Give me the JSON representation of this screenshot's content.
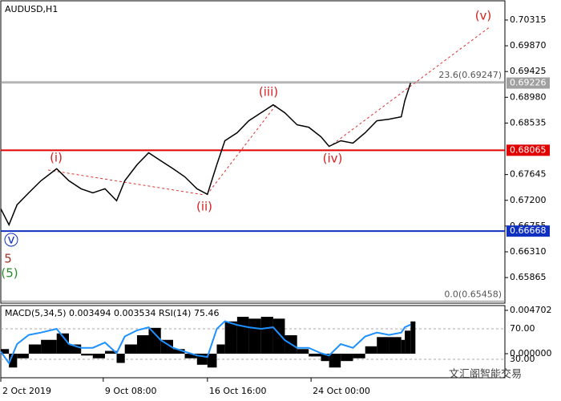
{
  "chart_data": [
    {
      "type": "line",
      "title": "AUDUSD,H1",
      "x": [
        0,
        14,
        28,
        48,
        69,
        96,
        117,
        138,
        158,
        179,
        199,
        213,
        234,
        254,
        275,
        296,
        316,
        337,
        355,
        371,
        385,
        406,
        426,
        447,
        468,
        488,
        509,
        529,
        550,
        564,
        584,
        605,
        626,
        646,
        667,
        688,
        694,
        704
      ],
      "series": [
        {
          "color": "#000000",
          "values": [
            0.67054,
            0.66777,
            0.67123,
            0.6733,
            0.67538,
            0.67745,
            0.67538,
            0.67399,
            0.6733,
            0.67399,
            0.67192,
            0.67538,
            0.67814,
            0.68021,
            0.67883,
            0.67745,
            0.67607,
            0.67399,
            0.67303,
            0.67814,
            0.68229,
            0.68367,
            0.68574,
            0.68712,
            0.6885,
            0.68712,
            0.68505,
            0.68463,
            0.68298,
            0.68132,
            0.68229,
            0.68187,
            0.68367,
            0.68574,
            0.68602,
            0.68643,
            0.6892,
            0.69226
          ]
        }
      ],
      "xlim": [
        0,
        866
      ],
      "xticks": [
        {
          "value": 0,
          "label": "2 Oct 2019"
        },
        {
          "value": 176,
          "label": "9 Oct 08:00"
        },
        {
          "value": 355,
          "label": "16 Oct 16:00"
        },
        {
          "value": 533,
          "label": "24 Oct 00:00"
        }
      ],
      "ylim": [
        0.65423,
        0.70647
      ],
      "yticks": [
        0.70315,
        {
          "value": 0.6987,
          "label": "0.69870"
        },
        0.69425,
        {
          "value": 0.6898,
          "label": "0.68980"
        },
        0.68535,
        0.67645,
        {
          "value": 0.672,
          "label": "0.67200"
        },
        0.66755,
        {
          "value": 0.6631,
          "label": "0.66310"
        },
        0.65865
      ],
      "levels": [
        {
          "value": 0.69226,
          "color": "#a0a0a0"
        },
        {
          "value": 0.68065,
          "color": "#e00000"
        },
        {
          "value": 0.66668,
          "color": "#1030c0"
        }
      ],
      "fib_levels": [
        {
          "label": "23.6(0.69247)",
          "value": 0.69247
        },
        {
          "label": "0.0(0.65458)",
          "value": 0.65458
        }
      ],
      "annotations": [
        {
          "text": "(v)",
          "color": "#d42020"
        },
        {
          "text": "(i)",
          "color": "#d42020"
        },
        {
          "text": "(ii)",
          "color": "#d42020"
        },
        {
          "text": "(iii)",
          "color": "#d42020"
        },
        {
          "text": "(iv)",
          "color": "#d42020"
        },
        {
          "text": "v",
          "color": "#1030c0"
        },
        {
          "text": "5",
          "color": "#a03020"
        },
        {
          "text": "(5)",
          "color": "#2a8a2a"
        }
      ],
      "watermark": "文汇阁智能交易"
    },
    {
      "type": "macd",
      "title": "MACD(5,34,5) 0.003494 0.003534 RSI(14) 75.46",
      "series": [
        {
          "color": "#000000",
          "values": [
            0.0005,
            -0.0015,
            -0.0005,
            0.001,
            0.0015,
            0.0022,
            0.001,
            -0.0002,
            -0.0005,
            0.0003,
            -0.001,
            0.001,
            0.002,
            0.0028,
            0.0015,
            0.0005,
            -0.0005,
            -0.0012,
            -0.0015,
            0.001,
            0.0035,
            0.004,
            0.0038,
            0.004,
            0.0038,
            0.002,
            0.0005,
            -0.0003,
            -0.0008,
            -0.0015,
            -0.0008,
            -0.0005,
            0.0008,
            0.0018,
            0.0018,
            0.0015,
            0.0025,
            0.0035
          ]
        },
        {
          "color": "#1e90ff",
          "axis": "y2",
          "values": [
            40,
            25,
            50,
            62,
            65,
            70,
            50,
            45,
            45,
            52,
            38,
            60,
            68,
            72,
            55,
            45,
            40,
            35,
            33,
            70,
            80,
            75,
            72,
            70,
            72,
            55,
            45,
            45,
            38,
            35,
            50,
            45,
            60,
            65,
            62,
            65,
            72,
            75.46
          ]
        }
      ],
      "ylim": [
        -0.00261,
        0.00522
      ],
      "yticks": [
        0.004702,
        {
          "value": 0,
          "label": "0.000000"
        }
      ],
      "y2lim": [
        5.8,
        100.5
      ],
      "y2ticks": [
        {
          "value": 70,
          "label": "70.00"
        },
        {
          "value": 30,
          "label": "30.00"
        }
      ]
    }
  ]
}
